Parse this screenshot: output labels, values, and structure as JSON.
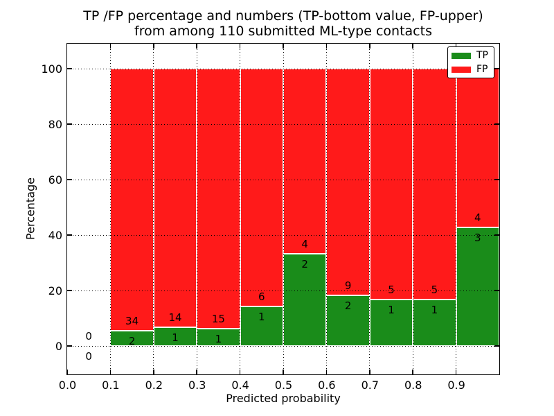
{
  "title": {
    "line1": "TP /FP percentage and numbers (TP-bottom value, FP-upper)",
    "line2": "from among 110 submitted ML-type contacts"
  },
  "axes": {
    "xlabel": "Predicted probability",
    "ylabel": "Percentage",
    "x_tick_labels": [
      "0.0",
      "0.1",
      "0.2",
      "0.3",
      "0.4",
      "0.5",
      "0.6",
      "0.7",
      "0.8",
      "0.9"
    ],
    "x_tick_values": [
      0.0,
      0.1,
      0.2,
      0.3,
      0.4,
      0.5,
      0.6,
      0.7,
      0.8,
      0.9
    ],
    "y_tick_labels": [
      "0",
      "20",
      "40",
      "60",
      "80",
      "100"
    ],
    "y_tick_values": [
      0,
      20,
      40,
      60,
      80,
      100
    ],
    "xlim": [
      0.0,
      1.0
    ],
    "ylim": [
      -10,
      110
    ],
    "grid": "dotted"
  },
  "legend": {
    "position": "upper-right",
    "items": [
      {
        "label": "TP",
        "color": "#1a8c1a"
      },
      {
        "label": "FP",
        "color": "#ff1a1a"
      }
    ]
  },
  "chart_data": {
    "type": "bar",
    "stacked": true,
    "normalized_to_percent": 100,
    "total_contacts": 110,
    "title": "TP /FP percentage and numbers (TP-bottom value, FP-upper) from among 110 submitted ML-type contacts",
    "xlabel": "Predicted probability",
    "ylabel": "Percentage",
    "xlim": [
      0.0,
      1.0
    ],
    "ylim": [
      -10,
      110
    ],
    "x_bins": [
      [
        0.0,
        0.1
      ],
      [
        0.1,
        0.2
      ],
      [
        0.2,
        0.3
      ],
      [
        0.3,
        0.4
      ],
      [
        0.4,
        0.5
      ],
      [
        0.5,
        0.6
      ],
      [
        0.6,
        0.7
      ],
      [
        0.7,
        0.8
      ],
      [
        0.8,
        0.9
      ],
      [
        0.9,
        1.0
      ]
    ],
    "series": [
      {
        "name": "TP",
        "color": "#1a8c1a",
        "counts": [
          0,
          2,
          1,
          1,
          1,
          2,
          2,
          1,
          1,
          3
        ]
      },
      {
        "name": "FP",
        "color": "#ff1a1a",
        "counts": [
          0,
          34,
          14,
          15,
          6,
          4,
          9,
          5,
          5,
          4
        ]
      }
    ],
    "tp_percent_by_bin": [
      null,
      5.56,
      6.67,
      6.25,
      14.29,
      33.33,
      18.18,
      16.67,
      16.67,
      42.86
    ],
    "legend_entries": [
      "TP",
      "FP"
    ],
    "legend_position": "upper-right",
    "grid": "dotted"
  }
}
